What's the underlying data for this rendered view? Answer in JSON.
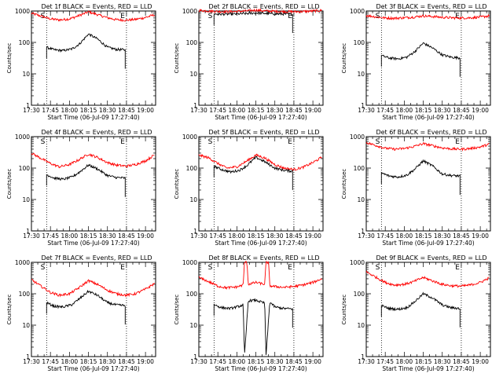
{
  "chart_data": {
    "type": "line",
    "shared": {
      "ylabel": "Counts/sec",
      "xlabel": "Start Time (06-Jul-09 17:27:40)",
      "yscale": "log",
      "ylim": [
        1,
        1000
      ],
      "y_ticks": [
        1,
        10,
        100,
        1000
      ],
      "y_tick_labels": [
        "1",
        "10",
        "100",
        "1000"
      ],
      "xlim": [
        "17:30",
        "19:08"
      ],
      "x_ticks": [
        "17:30",
        "17:45",
        "18:00",
        "18:15",
        "18:30",
        "18:45",
        "19:00"
      ],
      "marker_lines": [
        "17:42",
        "18:45"
      ],
      "marker_labels": [
        "S",
        "E"
      ],
      "series_colors": {
        "events": "#000000",
        "lld": "#ff0000"
      }
    },
    "panels": [
      {
        "title": "Det 1f BLACK = Events, RED = LLD",
        "series": [
          {
            "key": "lld",
            "x": [
              "17:30",
              "17:38",
              "17:45",
              "17:52",
              "18:00",
              "18:07",
              "18:15",
              "18:22",
              "18:30",
              "18:37",
              "18:45",
              "18:52",
              "19:00",
              "19:07"
            ],
            "values": [
              850,
              680,
              560,
              520,
              560,
              700,
              940,
              770,
              610,
              530,
              510,
              540,
              620,
              760
            ]
          },
          {
            "key": "events",
            "x": [
              "17:42",
              "17:48",
              "17:55",
              "18:02",
              "18:08",
              "18:15",
              "18:22",
              "18:30",
              "18:37",
              "18:44"
            ],
            "values": [
              70,
              58,
              55,
              62,
              90,
              185,
              130,
              70,
              60,
              58
            ]
          }
        ]
      },
      {
        "title": "Det 2f BLACK = Events, RED = LLD",
        "series": [
          {
            "key": "lld",
            "x": [
              "17:30",
              "17:38",
              "17:45",
              "17:52",
              "18:00",
              "18:07",
              "18:15",
              "18:22",
              "18:30",
              "18:37",
              "18:45",
              "18:52",
              "19:00",
              "19:07"
            ],
            "values": [
              1050,
              1000,
              970,
              950,
              970,
              1000,
              1070,
              1010,
              980,
              960,
              950,
              960,
              1000,
              1050
            ]
          },
          {
            "key": "events",
            "x": [
              "17:42",
              "17:48",
              "17:55",
              "18:02",
              "18:08",
              "18:15",
              "18:22",
              "18:30",
              "18:37",
              "18:44"
            ],
            "values": [
              800,
              790,
              800,
              810,
              830,
              870,
              840,
              810,
              800,
              795
            ]
          }
        ]
      },
      {
        "title": "Det 3f BLACK = Events, RED = LLD",
        "series": [
          {
            "key": "lld",
            "x": [
              "17:30",
              "17:38",
              "17:45",
              "17:52",
              "18:00",
              "18:07",
              "18:15",
              "18:22",
              "18:30",
              "18:37",
              "18:45",
              "18:52",
              "19:00",
              "19:07"
            ],
            "values": [
              720,
              650,
              600,
              590,
              610,
              640,
              700,
              670,
              630,
              610,
              600,
              610,
              640,
              700
            ]
          },
          {
            "key": "events",
            "x": [
              "17:42",
              "17:48",
              "17:55",
              "18:02",
              "18:08",
              "18:15",
              "18:22",
              "18:30",
              "18:37",
              "18:44"
            ],
            "values": [
              38,
              32,
              30,
              34,
              50,
              95,
              68,
              40,
              34,
              32
            ]
          }
        ]
      },
      {
        "title": "Det 4f BLACK = Events, RED = LLD",
        "series": [
          {
            "key": "lld",
            "x": [
              "17:30",
              "17:38",
              "17:45",
              "17:52",
              "18:00",
              "18:07",
              "18:15",
              "18:22",
              "18:30",
              "18:37",
              "18:45",
              "18:52",
              "19:00",
              "19:07"
            ],
            "values": [
              300,
              200,
              140,
              110,
              130,
              180,
              280,
              220,
              150,
              125,
              115,
              130,
              170,
              260
            ]
          },
          {
            "key": "events",
            "x": [
              "17:42",
              "17:48",
              "17:55",
              "18:02",
              "18:08",
              "18:15",
              "18:22",
              "18:30",
              "18:37",
              "18:44"
            ],
            "values": [
              62,
              48,
              44,
              52,
              75,
              125,
              95,
              58,
              50,
              48
            ]
          }
        ]
      },
      {
        "title": "Det 5f BLACK = Events, RED = LLD",
        "series": [
          {
            "key": "lld",
            "x": [
              "17:30",
              "17:38",
              "17:45",
              "17:52",
              "18:00",
              "18:07",
              "18:15",
              "18:22",
              "18:30",
              "18:37",
              "18:45",
              "18:52",
              "19:00",
              "19:07"
            ],
            "values": [
              260,
              210,
              140,
              100,
              110,
              160,
              260,
              210,
              130,
              100,
              90,
              105,
              150,
              220
            ]
          },
          {
            "key": "events",
            "x": [
              "17:42",
              "17:48",
              "17:55",
              "18:02",
              "18:08",
              "18:15",
              "18:22",
              "18:30",
              "18:37",
              "18:44"
            ],
            "values": [
              115,
              90,
              75,
              85,
              120,
              220,
              160,
              100,
              85,
              80
            ]
          }
        ]
      },
      {
        "title": "Det 6f BLACK = Events, RED = LLD",
        "series": [
          {
            "key": "lld",
            "x": [
              "17:30",
              "17:38",
              "17:45",
              "17:52",
              "18:00",
              "18:07",
              "18:15",
              "18:22",
              "18:30",
              "18:37",
              "18:45",
              "18:52",
              "19:00",
              "19:07"
            ],
            "values": [
              650,
              520,
              430,
              400,
              420,
              480,
              600,
              520,
              440,
              410,
              400,
              420,
              470,
              580
            ]
          },
          {
            "key": "events",
            "x": [
              "17:42",
              "17:48",
              "17:55",
              "18:02",
              "18:08",
              "18:15",
              "18:22",
              "18:30",
              "18:37",
              "18:44"
            ],
            "values": [
              70,
              56,
              52,
              60,
              90,
              170,
              120,
              65,
              58,
              56
            ]
          }
        ]
      },
      {
        "title": "Det 7f BLACK = Events, RED = LLD",
        "series": [
          {
            "key": "lld",
            "x": [
              "17:30",
              "17:38",
              "17:45",
              "17:52",
              "18:00",
              "18:07",
              "18:15",
              "18:22",
              "18:30",
              "18:37",
              "18:45",
              "18:52",
              "19:00",
              "19:07"
            ],
            "values": [
              280,
              170,
              110,
              90,
              100,
              150,
              260,
              200,
              130,
              100,
              90,
              100,
              140,
              210
            ]
          },
          {
            "key": "events",
            "x": [
              "17:42",
              "17:48",
              "17:55",
              "18:02",
              "18:08",
              "18:15",
              "18:22",
              "18:30",
              "18:37",
              "18:44"
            ],
            "values": [
              52,
              40,
              38,
              45,
              70,
              120,
              90,
              52,
              44,
              42
            ]
          }
        ]
      },
      {
        "title": "Det 8f BLACK = Events, RED = LLD",
        "series": [
          {
            "key": "lld",
            "x": [
              "17:30",
              "17:38",
              "17:45",
              "17:52",
              "18:00",
              "18:05",
              "18:06",
              "18:08",
              "18:09",
              "18:15",
              "18:22",
              "18:23",
              "18:25",
              "18:26",
              "18:30",
              "18:37",
              "18:45",
              "18:52",
              "19:00",
              "19:07"
            ],
            "values": [
              330,
              240,
              175,
              155,
              165,
              190,
              1000,
              1000,
              200,
              230,
              200,
              1000,
              1000,
              180,
              170,
              160,
              170,
              190,
              230,
              300
            ]
          },
          {
            "key": "events",
            "x": [
              "17:42",
              "17:48",
              "17:55",
              "18:02",
              "18:05",
              "18:06",
              "18:09",
              "18:15",
              "18:22",
              "18:23",
              "18:26",
              "18:30",
              "18:37",
              "18:44"
            ],
            "values": [
              45,
              36,
              34,
              40,
              45,
              1,
              60,
              62,
              50,
              1,
              55,
              38,
              34,
              33
            ]
          }
        ]
      },
      {
        "title": "Det 9f BLACK = Events, RED = LLD",
        "series": [
          {
            "key": "lld",
            "x": [
              "17:30",
              "17:38",
              "17:45",
              "17:52",
              "18:00",
              "18:07",
              "18:15",
              "18:22",
              "18:30",
              "18:37",
              "18:45",
              "18:52",
              "19:00",
              "19:07"
            ],
            "values": [
              500,
              330,
              230,
              190,
              200,
              240,
              330,
              260,
              200,
              180,
              175,
              190,
              230,
              320
            ]
          },
          {
            "key": "events",
            "x": [
              "17:42",
              "17:48",
              "17:55",
              "18:02",
              "18:08",
              "18:15",
              "18:22",
              "18:30",
              "18:37",
              "18:44"
            ],
            "values": [
              42,
              34,
              32,
              36,
              55,
              100,
              75,
              44,
              36,
              34
            ]
          }
        ]
      }
    ]
  }
}
